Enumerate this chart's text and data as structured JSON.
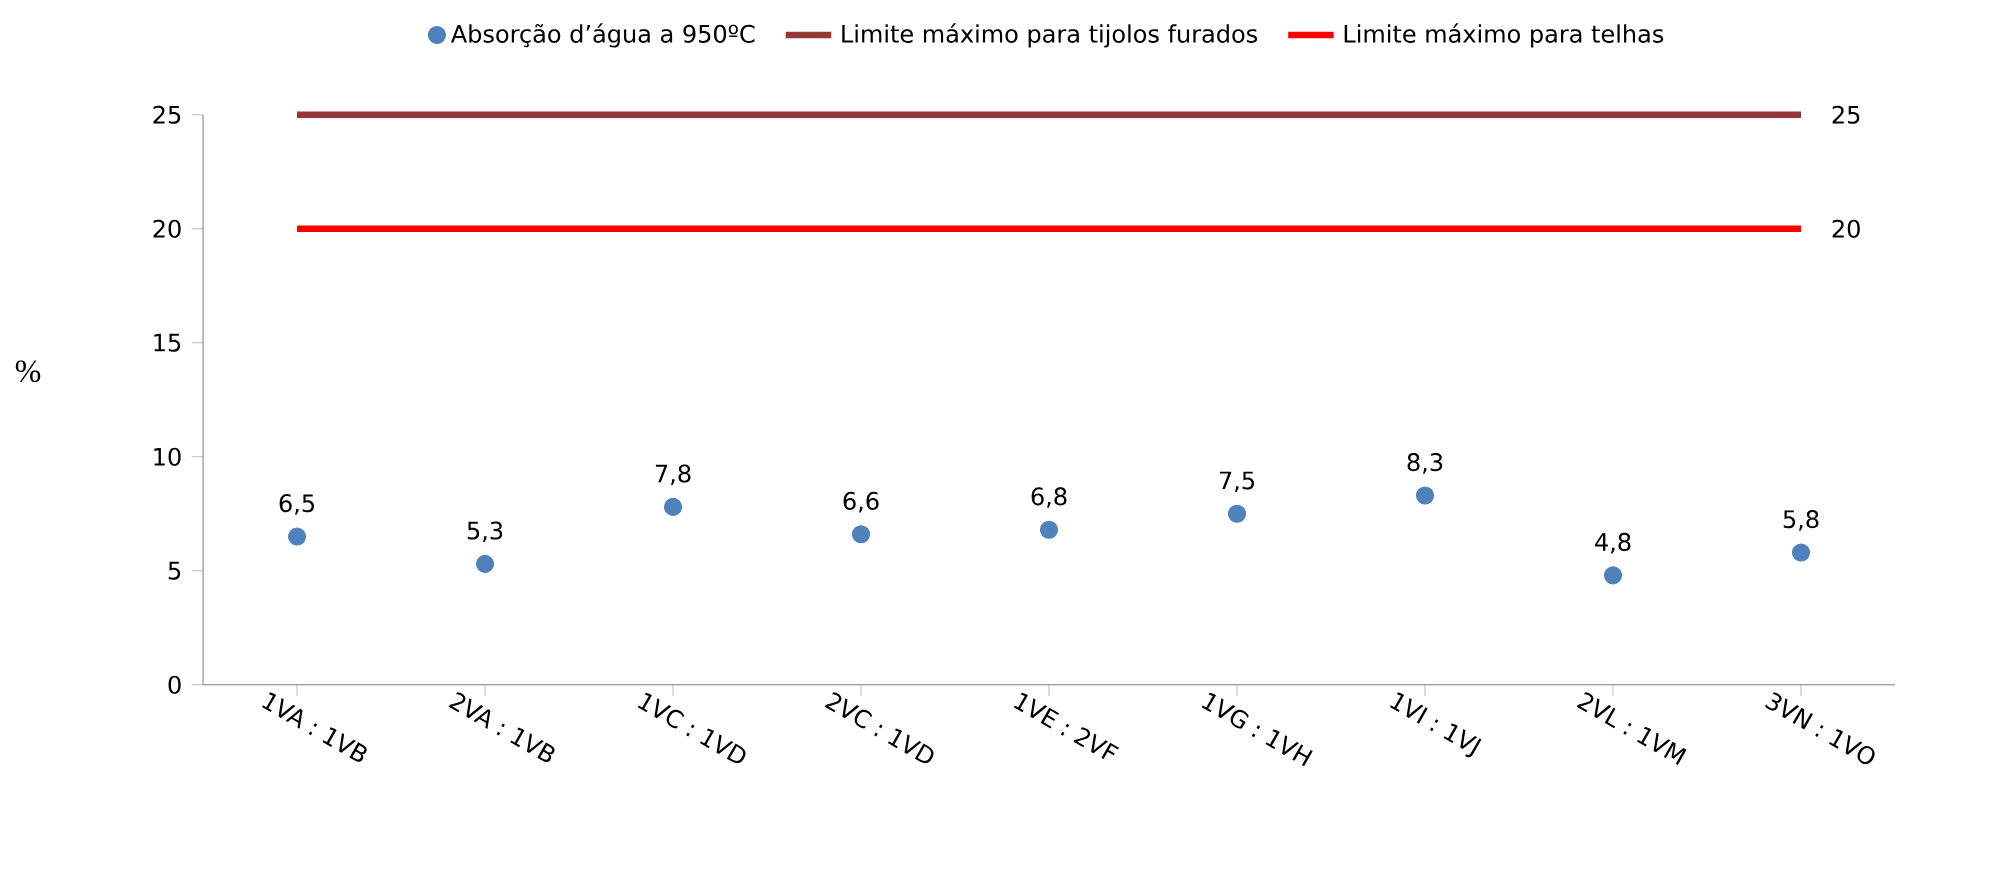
{
  "chart_data": {
    "type": "scatter",
    "ylabel": "%",
    "categories": [
      "1VA : 1VB",
      "2VA : 1VB",
      "1VC : 1VD",
      "2VC : 1VD",
      "1VE : 2VF",
      "1VG : 1VH",
      "1VI : 1VJ",
      "2VL : 1VM",
      "3VN : 1VO"
    ],
    "ylim": [
      0,
      25
    ],
    "yticks": [
      0,
      5,
      10,
      15,
      20,
      25
    ],
    "legend": "top",
    "series": [
      {
        "name": "Absorção d’água a 950ºC",
        "color": "#4f81bd",
        "marker": "circle",
        "values": [
          6.5,
          5.3,
          7.8,
          6.6,
          6.8,
          7.5,
          8.3,
          4.8,
          5.8
        ],
        "value_labels": [
          "6,5",
          "5,3",
          "7,8",
          "6,6",
          "6,8",
          "7,5",
          "8,3",
          "4,8",
          "5,8"
        ]
      },
      {
        "name": "Limite máximo para tijolos furados",
        "type": "line",
        "color": "#953735",
        "marker": "none",
        "values": [
          25,
          25,
          25,
          25,
          25,
          25,
          25,
          25,
          25
        ],
        "value_labels": [
          null,
          null,
          null,
          null,
          null,
          null,
          null,
          null,
          "25"
        ]
      },
      {
        "name": "Limite máximo para telhas",
        "type": "line",
        "color": "#ff0000",
        "marker": "none",
        "values": [
          20,
          20,
          20,
          20,
          20,
          20,
          20,
          20,
          20
        ],
        "value_labels": [
          null,
          null,
          null,
          null,
          null,
          null,
          null,
          null,
          "20"
        ]
      }
    ]
  }
}
